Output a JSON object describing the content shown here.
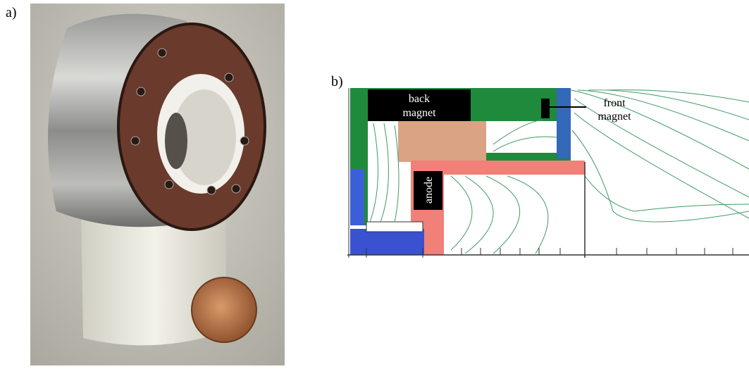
{
  "panels": [
    {
      "label": "a)"
    },
    {
      "label": "b)"
    }
  ],
  "labels": {
    "back_magnet": [
      "back",
      "magnet"
    ],
    "front_magnet": [
      "front",
      "magnet"
    ],
    "anode": "anode"
  }
}
